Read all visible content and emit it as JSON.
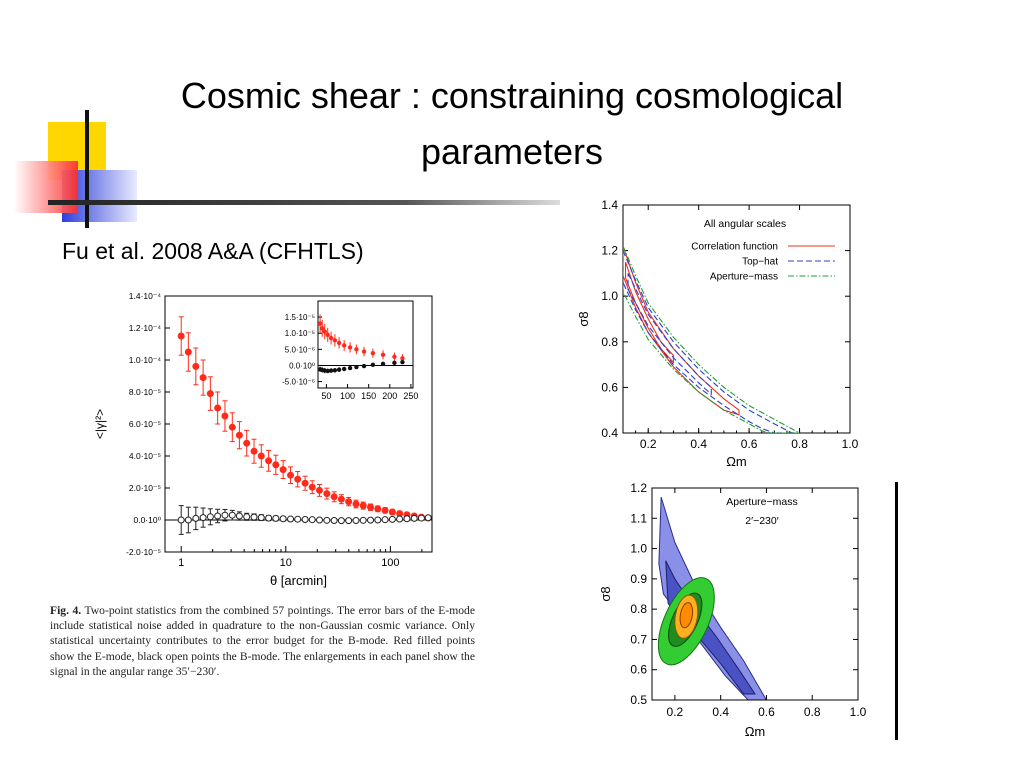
{
  "slide": {
    "title_line1": "Cosmic shear : constraining cosmological",
    "title_line2": "parameters",
    "subtitle": "Fu et al. 2008 A&A  (CFHTLS)",
    "colors": {
      "title": "#000000",
      "logo_yellow": "#ffd700",
      "logo_blue": "#2f3fd8",
      "logo_red": "#ff3030"
    }
  },
  "caption": {
    "label": "Fig. 4.",
    "text": "Two-point statistics from the combined 57 pointings. The error bars of the E-mode include statistical noise added in quadrature to the non-Gaussian cosmic variance. Only statistical uncertainty contributes to the error budget for the B-mode. Red filled points show the E-mode, black open points the B-mode. The enlargements in each panel show the signal in the angular range 35′−230′."
  },
  "chart_data": [
    {
      "type": "scatter",
      "xlabel": "θ [arcmin]",
      "ylabel": "<|γ|²>",
      "xscale": "log",
      "xlim": [
        0.7,
        250
      ],
      "ylim": [
        -2e-05,
        0.00014
      ],
      "xticks": [
        "1",
        "10",
        "100"
      ],
      "yticks": [
        "1.4·10⁻⁴",
        "1.2·10⁻⁴",
        "1.0·10⁻⁴",
        "8.0·10⁻⁵",
        "6.0·10⁻⁵",
        "4.0·10⁻⁵",
        "2.0·10⁻⁵",
        "0.0·10⁰",
        "-2.0·10⁻⁵"
      ],
      "ytick_values": [
        0.00014,
        0.00012,
        0.0001,
        8e-05,
        6e-05,
        4e-05,
        2e-05,
        0,
        -2e-05
      ],
      "series": [
        {
          "color": "#ff2a1a",
          "x": [
            1.0,
            1.17,
            1.38,
            1.62,
            1.9,
            2.23,
            2.62,
            3.08,
            3.6,
            4.23,
            4.97,
            5.83,
            6.85,
            8.03,
            9.43,
            11.1,
            13.0,
            15.3,
            17.9,
            21.0,
            24.7,
            29.0,
            34.0,
            39.9,
            46.9,
            55.0,
            64.6,
            75.8,
            89.0,
            104.5,
            122.6,
            144.0,
            169,
            198,
            230
          ],
          "y": [
            0.000115,
            0.000105,
            9.6e-05,
            8.9e-05,
            7.9e-05,
            7e-05,
            6.5e-05,
            5.8e-05,
            5.3e-05,
            4.8e-05,
            4.3e-05,
            4e-05,
            3.7e-05,
            3.45e-05,
            3.15e-05,
            2.8e-05,
            2.55e-05,
            2.3e-05,
            2.05e-05,
            1.85e-05,
            1.65e-05,
            1.45e-05,
            1.3e-05,
            1.15e-05,
            1e-05,
            9e-06,
            8e-06,
            7e-06,
            6e-06,
            5e-06,
            4e-06,
            3.3e-06,
            2.5e-06,
            1.8e-06,
            1.3e-06
          ],
          "err": [
            1.2e-05,
            1.2e-05,
            1.15e-05,
            1.1e-05,
            1.05e-05,
            1e-05,
            9.5e-06,
            9e-06,
            8.5e-06,
            8e-06,
            7.5e-06,
            7e-06,
            6.5e-06,
            6e-06,
            5.6e-06,
            5.2e-06,
            4.8e-06,
            4.4e-06,
            4e-06,
            3.7e-06,
            3.4e-06,
            3.1e-06,
            2.8e-06,
            2.6e-06,
            2.4e-06,
            2.2e-06,
            2e-06,
            1.8e-06,
            1.7e-06,
            1.6e-06,
            1.5e-06,
            1.4e-06,
            1.3e-06,
            1.2e-06,
            1.1e-06
          ]
        },
        {
          "color": "#222222",
          "x": [
            1.0,
            1.17,
            1.38,
            1.62,
            1.9,
            2.23,
            2.62,
            3.08,
            3.6,
            4.23,
            4.97,
            5.83,
            6.85,
            8.03,
            9.43,
            11.1,
            13.0,
            15.3,
            17.9,
            21.0,
            24.7,
            29.0,
            34.0,
            39.9,
            46.9,
            55.0,
            64.6,
            75.8,
            89.0,
            104.5,
            122.6,
            144.0,
            169,
            198,
            230
          ],
          "y": [
            0,
            0,
            1e-06,
            1.5e-06,
            2e-06,
            2.5e-06,
            3e-06,
            3e-06,
            2.5e-06,
            2e-06,
            1.8e-06,
            1.5e-06,
            1.2e-06,
            1e-06,
            8e-07,
            6e-07,
            5e-07,
            3e-07,
            2e-07,
            0,
            -2e-07,
            -3e-07,
            -4e-07,
            -4e-07,
            -3e-07,
            -2e-07,
            -1e-07,
            0,
            2e-07,
            4e-07,
            6e-07,
            8e-07,
            1e-06,
            1.2e-06,
            1.4e-06
          ],
          "err": [
            9e-06,
            8e-06,
            7e-06,
            6e-06,
            5e-06,
            4.2e-06,
            3.6e-06,
            3e-06,
            2.6e-06,
            2.2e-06,
            2e-06,
            1.8e-06,
            1.6e-06,
            1.5e-06,
            1.4e-06,
            1.3e-06,
            1.2e-06,
            1.1e-06,
            1e-06,
            1e-06,
            9e-07,
            9e-07,
            8e-07,
            8e-07,
            8e-07,
            7e-07,
            7e-07,
            7e-07,
            6e-07,
            6e-07,
            6e-07,
            6e-07,
            5e-07,
            5e-07,
            5e-07
          ]
        }
      ],
      "inset": {
        "xlim": [
          30,
          255
        ],
        "ylim": [
          -7e-06,
          2e-05
        ],
        "xticks": [
          "50",
          "100",
          "150",
          "200",
          "250"
        ],
        "xtick_values": [
          50,
          100,
          150,
          200,
          250
        ],
        "yticks": [
          "1.5·10⁻⁵",
          "1.0·10⁻⁵",
          "5.0·10⁻⁶",
          "0.0·10⁰",
          "-5.0·10⁻⁶"
        ],
        "ytick_values": [
          1.5e-05,
          1e-05,
          5e-06,
          0,
          -5e-06
        ],
        "series": [
          {
            "color": "#ff2a1a",
            "x": [
              35,
              40,
              46,
              53,
              61,
              70,
              80,
              92,
              106,
              121,
              139,
              160,
              184,
              211,
              230
            ],
            "y": [
              1.3e-05,
              1.15e-05,
              1.05e-05,
              9.5e-06,
              8.5e-06,
              7.8e-06,
              7e-06,
              6.2e-06,
              5.6e-06,
              5e-06,
              4.3e-06,
              3.8e-06,
              3.3e-06,
              2.7e-06,
              2.2e-06
            ],
            "err": [
              2.8e-06,
              2.6e-06,
              2.4e-06,
              2.2e-06,
              2e-06,
              1.9e-06,
              1.8e-06,
              1.7e-06,
              1.6e-06,
              1.5e-06,
              1.5e-06,
              1.4e-06,
              1.4e-06,
              1.3e-06,
              1.3e-06
            ]
          },
          {
            "color": "#111111",
            "x": [
              35,
              40,
              46,
              53,
              61,
              70,
              80,
              92,
              106,
              121,
              139,
              160,
              184,
              211,
              230
            ],
            "y": [
              -1.2e-06,
              -1.4e-06,
              -1.6e-06,
              -1.7e-06,
              -1.6e-06,
              -1.5e-06,
              -1.3e-06,
              -1.1e-06,
              -8e-07,
              -5e-07,
              -2e-07,
              2e-07,
              5e-07,
              8e-07,
              1e-06
            ],
            "err": [
              8e-07,
              8e-07,
              8e-07,
              7e-07,
              7e-07,
              7e-07,
              7e-07,
              6e-07,
              6e-07,
              6e-07,
              6e-07,
              5e-07,
              5e-07,
              5e-07,
              5e-07
            ]
          }
        ]
      }
    },
    {
      "type": "line",
      "title": "All angular scales",
      "xlabel": "Ωm",
      "ylabel": "σ8",
      "xlim": [
        0.1,
        1.0
      ],
      "ylim": [
        0.4,
        1.4
      ],
      "xticks": [
        "0.2",
        "0.4",
        "0.6",
        "0.8",
        "1.0"
      ],
      "xtick_values": [
        0.2,
        0.4,
        0.6,
        0.8,
        1.0
      ],
      "yticks": [
        "1.4",
        "1.2",
        "1.0",
        "0.8",
        "0.6",
        "0.4"
      ],
      "ytick_values": [
        1.4,
        1.2,
        1.0,
        0.8,
        0.6,
        0.4
      ],
      "legend_position": "top-right",
      "series": [
        {
          "name": "Correlation function",
          "color": "#e8341c",
          "dash": "solid",
          "outer_upper": [
            [
              0.1,
              1.22
            ],
            [
              0.15,
              1.06
            ],
            [
              0.2,
              0.93
            ],
            [
              0.3,
              0.77
            ],
            [
              0.4,
              0.65
            ],
            [
              0.5,
              0.55
            ],
            [
              0.56,
              0.5
            ]
          ],
          "outer_lower": [
            [
              0.1,
              1.09
            ],
            [
              0.15,
              0.95
            ],
            [
              0.2,
              0.84
            ],
            [
              0.3,
              0.69
            ],
            [
              0.4,
              0.58
            ],
            [
              0.5,
              0.5
            ],
            [
              0.56,
              0.48
            ]
          ],
          "inner_upper": [
            [
              0.11,
              1.15
            ],
            [
              0.15,
              1.02
            ],
            [
              0.2,
              0.9
            ],
            [
              0.25,
              0.8
            ],
            [
              0.3,
              0.74
            ]
          ],
          "inner_lower": [
            [
              0.11,
              1.08
            ],
            [
              0.15,
              0.97
            ],
            [
              0.2,
              0.86
            ],
            [
              0.25,
              0.77
            ],
            [
              0.3,
              0.71
            ]
          ]
        },
        {
          "name": "Top−hat",
          "color": "#2c3fd0",
          "dash": "dashed",
          "outer_upper": [
            [
              0.1,
              1.2
            ],
            [
              0.15,
              1.07
            ],
            [
              0.2,
              0.95
            ],
            [
              0.3,
              0.8
            ],
            [
              0.4,
              0.68
            ],
            [
              0.5,
              0.58
            ],
            [
              0.6,
              0.5
            ],
            [
              0.7,
              0.44
            ],
            [
              0.77,
              0.4
            ]
          ],
          "outer_lower": [
            [
              0.1,
              1.06
            ],
            [
              0.15,
              0.94
            ],
            [
              0.2,
              0.84
            ],
            [
              0.3,
              0.7
            ],
            [
              0.4,
              0.6
            ],
            [
              0.5,
              0.52
            ],
            [
              0.6,
              0.45
            ],
            [
              0.65,
              0.42
            ],
            [
              0.7,
              0.4
            ]
          ],
          "inner_upper": [
            [
              0.12,
              1.1
            ],
            [
              0.2,
              0.92
            ],
            [
              0.3,
              0.77
            ],
            [
              0.4,
              0.65
            ],
            [
              0.45,
              0.6
            ]
          ],
          "inner_lower": [
            [
              0.12,
              1.03
            ],
            [
              0.2,
              0.87
            ],
            [
              0.3,
              0.73
            ],
            [
              0.4,
              0.62
            ],
            [
              0.45,
              0.57
            ]
          ]
        },
        {
          "name": "Aperture−mass",
          "color": "#1f9e3c",
          "dash": "dashdot",
          "outer_upper": [
            [
              0.1,
              1.22
            ],
            [
              0.15,
              1.09
            ],
            [
              0.2,
              0.97
            ],
            [
              0.3,
              0.82
            ],
            [
              0.4,
              0.7
            ],
            [
              0.5,
              0.6
            ],
            [
              0.6,
              0.52
            ],
            [
              0.7,
              0.46
            ],
            [
              0.8,
              0.4
            ]
          ],
          "outer_lower": [
            [
              0.1,
              1.02
            ],
            [
              0.15,
              0.91
            ],
            [
              0.2,
              0.81
            ],
            [
              0.3,
              0.68
            ],
            [
              0.4,
              0.58
            ],
            [
              0.5,
              0.5
            ],
            [
              0.6,
              0.44
            ],
            [
              0.65,
              0.41
            ],
            [
              0.68,
              0.4
            ]
          ]
        }
      ]
    },
    {
      "type": "area",
      "title": "Aperture−mass",
      "subtitle": "2′−230′",
      "xlabel": "Ωm",
      "ylabel": "σ8",
      "xlim": [
        0.1,
        1.0
      ],
      "ylim": [
        0.5,
        1.2
      ],
      "xticks": [
        "0.2",
        "0.4",
        "0.6",
        "0.8",
        "1.0"
      ],
      "xtick_values": [
        0.2,
        0.4,
        0.6,
        0.8,
        1.0
      ],
      "yticks": [
        "1.2",
        "1.1",
        "1.0",
        "0.9",
        "0.8",
        "0.7",
        "0.6",
        "0.5"
      ],
      "ytick_values": [
        1.2,
        1.1,
        1.0,
        0.9,
        0.8,
        0.7,
        0.6,
        0.5
      ],
      "regions": [
        {
          "name": "",
          "color": "#8a90e8",
          "stroke": "#2a2f8a",
          "polygon": [
            [
              0.14,
              1.17
            ],
            [
              0.2,
              1.02
            ],
            [
              0.3,
              0.86
            ],
            [
              0.4,
              0.74
            ],
            [
              0.5,
              0.63
            ],
            [
              0.6,
              0.5
            ],
            [
              0.52,
              0.5
            ],
            [
              0.42,
              0.58
            ],
            [
              0.32,
              0.68
            ],
            [
              0.22,
              0.78
            ],
            [
              0.15,
              0.85
            ],
            [
              0.13,
              0.95
            ]
          ]
        },
        {
          "name": "",
          "color": "#4a52c4",
          "stroke": "#1e226a",
          "polygon": [
            [
              0.16,
              0.96
            ],
            [
              0.2,
              0.9
            ],
            [
              0.28,
              0.81
            ],
            [
              0.38,
              0.71
            ],
            [
              0.48,
              0.6
            ],
            [
              0.55,
              0.52
            ],
            [
              0.5,
              0.52
            ],
            [
              0.4,
              0.62
            ],
            [
              0.3,
              0.71
            ],
            [
              0.22,
              0.76
            ],
            [
              0.17,
              0.82
            ]
          ]
        },
        {
          "name": "",
          "color": "#33cc33",
          "stroke": "#117711",
          "ellipse": {
            "cx": 0.25,
            "cy": 0.76,
            "rx": 0.095,
            "ry": 0.155,
            "rot": 25
          }
        },
        {
          "name": "",
          "color": "#1e8c1e",
          "stroke": "#0a4a0a",
          "ellipse": {
            "cx": 0.245,
            "cy": 0.765,
            "rx": 0.055,
            "ry": 0.095,
            "rot": 25
          }
        },
        {
          "name": "",
          "color": "#ffb020",
          "stroke": "#8a5a00",
          "ellipse": {
            "cx": 0.25,
            "cy": 0.775,
            "rx": 0.048,
            "ry": 0.072,
            "rot": 10
          }
        },
        {
          "name": "",
          "color": "#ff8c00",
          "stroke": "#8a3a00",
          "ellipse": {
            "cx": 0.25,
            "cy": 0.78,
            "rx": 0.026,
            "ry": 0.042,
            "rot": 10
          }
        }
      ]
    }
  ]
}
